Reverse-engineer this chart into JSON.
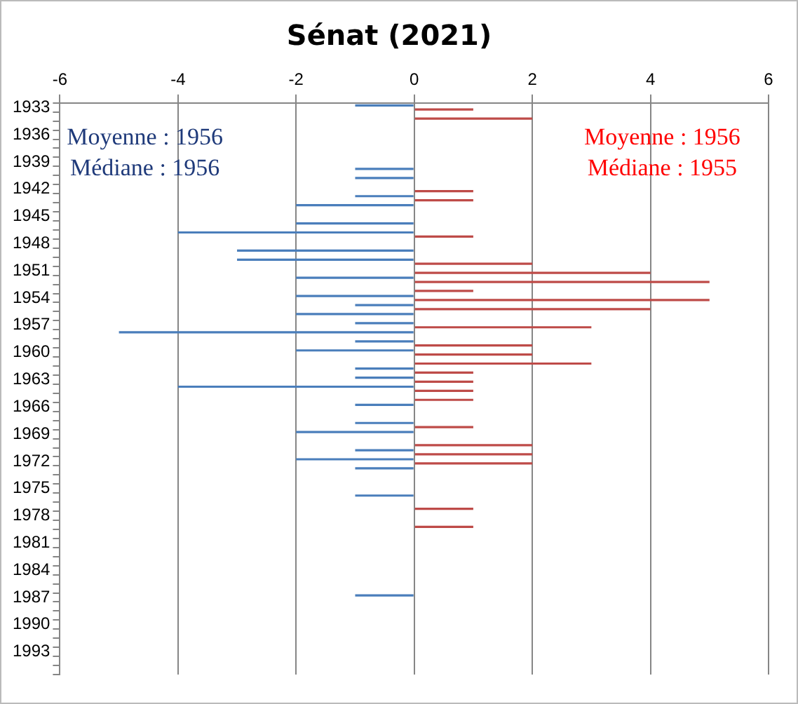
{
  "chart_data": {
    "type": "bar",
    "orientation": "horizontal",
    "title": "Sénat (2021)",
    "categories": [
      "1933",
      null,
      null,
      "1936",
      null,
      null,
      "1939",
      null,
      null,
      "1942",
      null,
      null,
      "1945",
      null,
      null,
      "1948",
      null,
      null,
      "1951",
      null,
      null,
      "1954",
      null,
      null,
      "1957",
      null,
      null,
      "1960",
      null,
      null,
      "1963",
      null,
      null,
      "1966",
      null,
      null,
      "1969",
      null,
      null,
      "1972",
      null,
      null,
      "1975",
      null,
      null,
      "1978",
      null,
      null,
      "1981",
      null,
      null,
      "1984",
      null,
      null,
      "1987",
      null,
      null,
      "1990",
      null,
      null,
      "1993",
      null,
      null
    ],
    "series": [
      {
        "color": "#4a7ebb",
        "values": [
          -1,
          null,
          null,
          null,
          null,
          null,
          null,
          -1,
          -1,
          null,
          -1,
          -2,
          null,
          -2,
          -4,
          null,
          -3,
          -3,
          null,
          -2,
          null,
          -2,
          -1,
          -2,
          -1,
          -5,
          -1,
          -2,
          null,
          -1,
          -1,
          -4,
          null,
          -1,
          null,
          -1,
          -2,
          null,
          -1,
          -2,
          -1,
          null,
          null,
          -1,
          null,
          null,
          null,
          null,
          null,
          null,
          null,
          null,
          null,
          null,
          -1,
          null,
          null,
          null,
          null,
          null,
          null,
          null,
          null
        ]
      },
      {
        "color": "#be4b48",
        "values": [
          1,
          2,
          null,
          null,
          null,
          null,
          null,
          null,
          null,
          1,
          1,
          null,
          null,
          null,
          1,
          null,
          null,
          2,
          4,
          5,
          1,
          5,
          4,
          null,
          3,
          null,
          2,
          2,
          3,
          1,
          1,
          1,
          1,
          null,
          null,
          1,
          null,
          2,
          2,
          2,
          null,
          null,
          null,
          null,
          1,
          null,
          1,
          null,
          null,
          null,
          null,
          null,
          null,
          null,
          null,
          null,
          null,
          null,
          null,
          null,
          null,
          null,
          null
        ]
      }
    ],
    "xlim": [
      -6,
      6
    ],
    "xticks": [
      -6,
      -4,
      -2,
      0,
      2,
      4,
      6
    ],
    "grid": "x",
    "legend": false,
    "annotations": [
      "Moyenne : 1956\nMédiane : 1956",
      "Moyenne : 1956\nMédiane : 1955"
    ]
  }
}
